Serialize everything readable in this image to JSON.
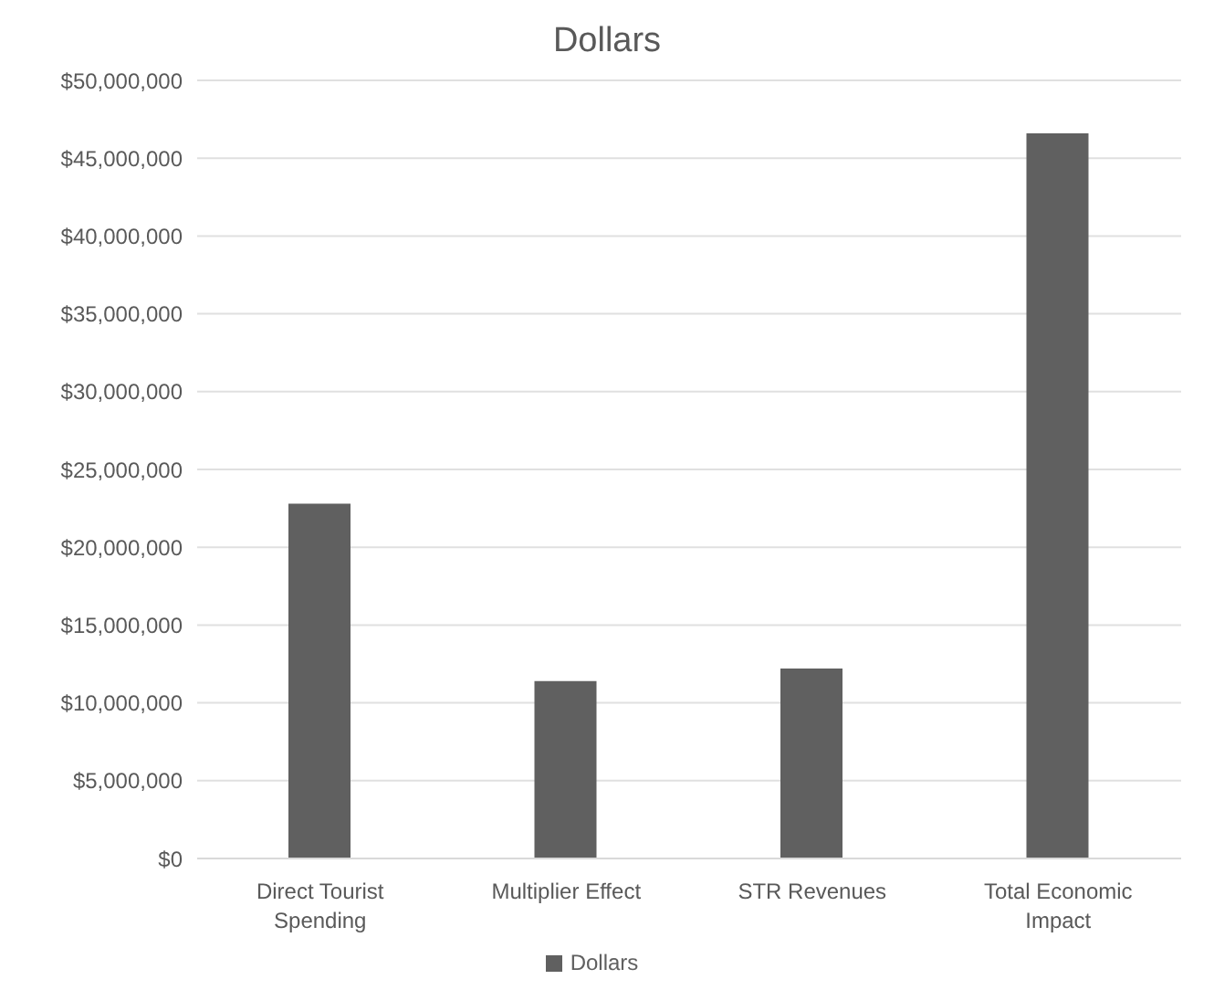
{
  "chart_data": {
    "type": "bar",
    "title": "Dollars",
    "categories": [
      "Direct Tourist Spending",
      "Multiplier Effect",
      "STR Revenues",
      "Total Economic Impact"
    ],
    "series": [
      {
        "name": "Dollars",
        "color": "#606060",
        "values": [
          22800000,
          11400000,
          12200000,
          46600000
        ]
      }
    ],
    "ylim": [
      0,
      50000000
    ],
    "yticks": [
      {
        "value": 0,
        "label": "$0"
      },
      {
        "value": 5000000,
        "label": "$5,000,000"
      },
      {
        "value": 10000000,
        "label": "$10,000,000"
      },
      {
        "value": 15000000,
        "label": "$15,000,000"
      },
      {
        "value": 20000000,
        "label": "$20,000,000"
      },
      {
        "value": 25000000,
        "label": "$25,000,000"
      },
      {
        "value": 30000000,
        "label": "$30,000,000"
      },
      {
        "value": 35000000,
        "label": "$35,000,000"
      },
      {
        "value": 40000000,
        "label": "$40,000,000"
      },
      {
        "value": 45000000,
        "label": "$45,000,000"
      },
      {
        "value": 50000000,
        "label": "$50,000,000"
      }
    ],
    "grid": "y",
    "legend": "bottom"
  }
}
